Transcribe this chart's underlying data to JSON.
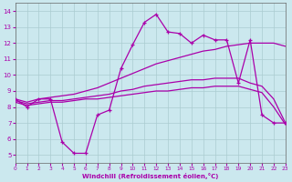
{
  "xlabel": "Windchill (Refroidissement éolien,°C)",
  "xlim": [
    0,
    23
  ],
  "ylim": [
    4.5,
    14.5
  ],
  "yticks": [
    5,
    6,
    7,
    8,
    9,
    10,
    11,
    12,
    13,
    14
  ],
  "xticks": [
    0,
    1,
    2,
    3,
    4,
    5,
    6,
    7,
    8,
    9,
    10,
    11,
    12,
    13,
    14,
    15,
    16,
    17,
    18,
    19,
    20,
    21,
    22,
    23
  ],
  "bg_color": "#cbe8ee",
  "grid_color": "#aaccd0",
  "line_color": "#aa00aa",
  "line_width": 0.9,
  "s1_x": [
    0,
    1,
    2,
    3,
    4,
    5,
    6,
    7,
    8,
    9,
    10,
    11,
    12,
    13,
    14,
    15,
    16,
    17,
    18,
    19,
    20,
    21,
    22,
    23
  ],
  "s1_y": [
    8.5,
    8.0,
    8.5,
    8.5,
    5.8,
    5.1,
    5.1,
    7.5,
    7.8,
    10.4,
    11.9,
    13.3,
    13.8,
    12.7,
    12.6,
    12.0,
    12.5,
    12.2,
    12.2,
    9.5,
    12.2,
    7.5,
    7.0,
    7.0
  ],
  "s2_x": [
    0,
    1,
    2,
    3,
    4,
    5,
    6,
    7,
    8,
    9,
    10,
    11,
    12,
    13,
    14,
    15,
    16,
    17,
    18,
    19,
    20,
    21,
    22,
    23
  ],
  "s2_y": [
    8.5,
    8.3,
    8.5,
    8.6,
    8.7,
    8.8,
    9.0,
    9.2,
    9.5,
    9.8,
    10.1,
    10.4,
    10.7,
    10.9,
    11.1,
    11.3,
    11.5,
    11.6,
    11.8,
    11.9,
    12.0,
    12.0,
    12.0,
    11.8
  ],
  "s3_x": [
    0,
    1,
    2,
    3,
    4,
    5,
    6,
    7,
    8,
    9,
    10,
    11,
    12,
    13,
    14,
    15,
    16,
    17,
    18,
    19,
    20,
    21,
    22,
    23
  ],
  "s3_y": [
    8.4,
    8.2,
    8.3,
    8.4,
    8.4,
    8.5,
    8.6,
    8.7,
    8.8,
    9.0,
    9.1,
    9.3,
    9.4,
    9.5,
    9.6,
    9.7,
    9.7,
    9.8,
    9.8,
    9.8,
    9.5,
    9.3,
    8.5,
    7.0
  ],
  "s4_x": [
    0,
    1,
    2,
    3,
    4,
    5,
    6,
    7,
    8,
    9,
    10,
    11,
    12,
    13,
    14,
    15,
    16,
    17,
    18,
    19,
    20,
    21,
    22,
    23
  ],
  "s4_y": [
    8.3,
    8.1,
    8.2,
    8.3,
    8.3,
    8.4,
    8.5,
    8.5,
    8.6,
    8.7,
    8.8,
    8.9,
    9.0,
    9.0,
    9.1,
    9.2,
    9.2,
    9.3,
    9.3,
    9.3,
    9.1,
    8.9,
    8.0,
    6.9
  ]
}
